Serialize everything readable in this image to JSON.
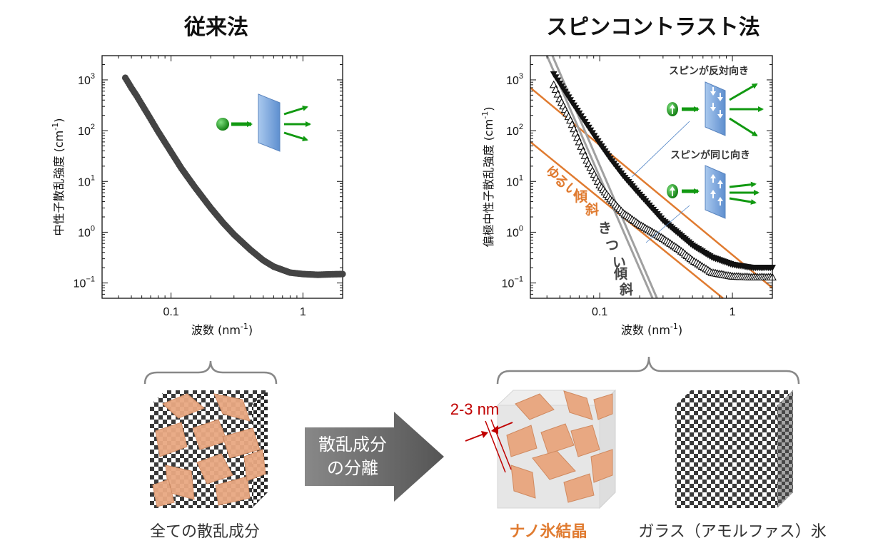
{
  "headings": {
    "left": "従来法",
    "right": "スピンコントラスト法"
  },
  "colors": {
    "orange": "#e07b30",
    "green": "#119911",
    "plate_blue": "#6f9fd8",
    "marker_gray": "#444444",
    "gray_line": "#a0a0a0",
    "crystal": "#e8a882",
    "dim_red": "#c00000"
  },
  "icons": {
    "left_inset": "neutron-beam-scattering-icon",
    "spin_opposite": "spin-opposite-scattering-icon",
    "spin_same": "spin-same-scattering-icon"
  },
  "chart_data": [
    {
      "type": "scatter",
      "title": "従来法",
      "xlabel": "波数 (nm",
      "xlabel_sup": "-1",
      "xlabel_tail": ")",
      "ylabel": "中性子散乱強度 (cm",
      "ylabel_sup": "-1",
      "ylabel_tail": ")",
      "xscale": "log",
      "yscale": "log",
      "xlim": [
        0.03,
        2.0
      ],
      "ylim": [
        0.05,
        3000
      ],
      "xticks": [
        {
          "value": 0.1,
          "label": "0.1"
        },
        {
          "value": 1,
          "label": "1"
        }
      ],
      "yticks": [
        {
          "value": 1000,
          "base": "10",
          "exp": "3"
        },
        {
          "value": 100,
          "base": "10",
          "exp": "2"
        },
        {
          "value": 10,
          "base": "10",
          "exp": "1"
        },
        {
          "value": 1,
          "base": "10",
          "exp": "0"
        },
        {
          "value": 0.1,
          "base": "10",
          "exp": "−1"
        }
      ],
      "series": [
        {
          "marker": "filled-circle",
          "x": [
            0.045,
            0.05,
            0.055,
            0.06,
            0.07,
            0.08,
            0.1,
            0.12,
            0.15,
            0.2,
            0.25,
            0.3,
            0.4,
            0.5,
            0.6,
            0.8,
            1.0,
            1.3,
            1.6,
            2.0
          ],
          "y": [
            1100,
            700,
            480,
            330,
            170,
            95,
            38,
            18,
            8,
            3,
            1.5,
            0.9,
            0.45,
            0.28,
            0.21,
            0.16,
            0.15,
            0.145,
            0.148,
            0.15
          ]
        }
      ]
    },
    {
      "type": "scatter",
      "title": "スピンコントラスト法",
      "xlabel": "波数 (nm",
      "xlabel_sup": "-1",
      "xlabel_tail": ")",
      "ylabel": "偏極中性子散乱強度 (cm",
      "ylabel_sup": "-1",
      "ylabel_tail": ")",
      "xscale": "log",
      "yscale": "log",
      "xlim": [
        0.03,
        2.0
      ],
      "ylim": [
        0.05,
        3000
      ],
      "xticks": [
        {
          "value": 0.1,
          "label": "0.1"
        },
        {
          "value": 1,
          "label": "1"
        }
      ],
      "yticks": [
        {
          "value": 1000,
          "base": "10",
          "exp": "3"
        },
        {
          "value": 100,
          "base": "10",
          "exp": "2"
        },
        {
          "value": 10,
          "base": "10",
          "exp": "1"
        },
        {
          "value": 1,
          "base": "10",
          "exp": "0"
        },
        {
          "value": 0.1,
          "base": "10",
          "exp": "−1"
        }
      ],
      "series": [
        {
          "marker": "filled-triangle-down",
          "x": [
            0.045,
            0.05,
            0.06,
            0.07,
            0.08,
            0.1,
            0.12,
            0.15,
            0.2,
            0.3,
            0.4,
            0.5,
            0.7,
            1.0,
            1.4,
            2.0
          ],
          "y": [
            1300,
            850,
            400,
            220,
            130,
            55,
            28,
            13,
            5.5,
            1.7,
            0.9,
            0.55,
            0.32,
            0.23,
            0.2,
            0.2
          ]
        },
        {
          "marker": "open-triangle-up",
          "x": [
            0.045,
            0.05,
            0.06,
            0.07,
            0.08,
            0.1,
            0.12,
            0.15,
            0.2,
            0.25,
            0.3,
            0.4,
            0.5,
            0.7,
            1.0,
            1.4,
            2.0
          ],
          "y": [
            800,
            420,
            160,
            60,
            26,
            8.5,
            4.5,
            2.4,
            1.4,
            1.0,
            0.75,
            0.45,
            0.28,
            0.16,
            0.135,
            0.13,
            0.13
          ]
        }
      ],
      "guide_lines": [
        {
          "style": "orange",
          "points": [
            [
              0.03,
              700
            ],
            [
              2.0,
              0.08
            ]
          ]
        },
        {
          "style": "orange",
          "points": [
            [
              0.03,
              60
            ],
            [
              0.85,
              0.05
            ]
          ]
        },
        {
          "style": "gray",
          "points": [
            [
              0.04,
              3000
            ],
            [
              0.25,
              0.05
            ]
          ]
        },
        {
          "style": "gray",
          "points": [
            [
              0.044,
              3000
            ],
            [
              0.27,
              0.05
            ]
          ]
        }
      ],
      "annotations": {
        "spin_opposite": "スピンが反対向き",
        "spin_same": "スピンが同じ向き",
        "gentle_slope": [
          "ゆ",
          "る",
          "い",
          "傾",
          "斜"
        ],
        "steep_slope": [
          "き",
          "つ",
          "い",
          "傾",
          "斜"
        ]
      }
    }
  ],
  "bottom": {
    "all_components": "全ての散乱成分",
    "arrow_line1": "散乱成分",
    "arrow_line2": "の分離",
    "size_label": "2-3 nm",
    "nano_ice": "ナノ氷結晶",
    "glass_ice": "ガラス（アモルファス）氷"
  }
}
